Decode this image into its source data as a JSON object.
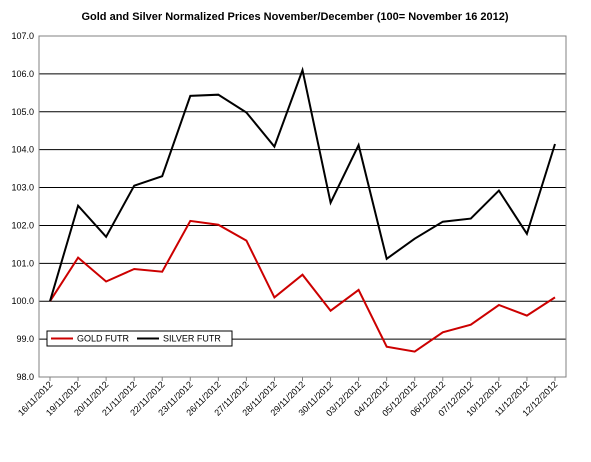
{
  "chart_data": {
    "type": "line",
    "title": "Gold and Silver Normalized Prices November/December (100= November 16 2012)",
    "xlabel": "",
    "ylabel": "",
    "categories": [
      "16/11/2012",
      "19/11/2012",
      "20/11/2012",
      "21/11/2012",
      "22/11/2012",
      "23/11/2012",
      "26/11/2012",
      "27/11/2012",
      "28/11/2012",
      "29/11/2012",
      "30/11/2012",
      "03/12/2012",
      "04/12/2012",
      "05/12/2012",
      "06/12/2012",
      "07/12/2012",
      "10/12/2012",
      "11/12/2012",
      "12/12/2012"
    ],
    "ylim": [
      98.0,
      107.0
    ],
    "yticks": [
      "98.0",
      "99.0",
      "100.0",
      "101.0",
      "102.0",
      "103.0",
      "104.0",
      "105.0",
      "106.0",
      "107.0"
    ],
    "grid": true,
    "legend_placement": "bottom-left",
    "series": [
      {
        "name": "GOLD  FUTR",
        "color": "#cc0000",
        "values": [
          100.0,
          101.15,
          100.52,
          100.85,
          100.78,
          102.12,
          102.02,
          101.6,
          100.1,
          100.7,
          99.75,
          100.3,
          98.8,
          98.67,
          99.18,
          99.38,
          99.9,
          99.62,
          100.1
        ]
      },
      {
        "name": "SILVER  FUTR",
        "color": "#000000",
        "values": [
          100.0,
          102.52,
          101.7,
          103.05,
          103.3,
          105.42,
          105.45,
          104.98,
          104.08,
          106.1,
          102.6,
          104.12,
          101.12,
          101.65,
          102.1,
          102.18,
          102.92,
          101.78,
          104.15
        ]
      }
    ]
  }
}
